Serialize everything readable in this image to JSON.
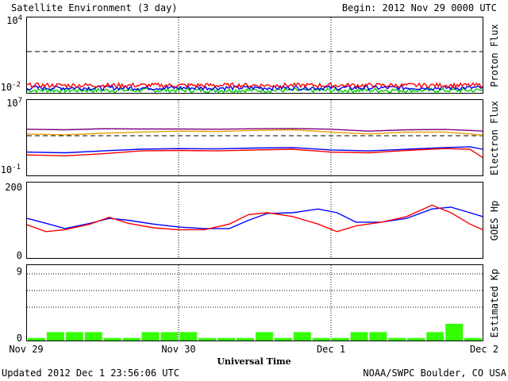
{
  "header": {
    "title": "Satellite Environment (3 day)",
    "begin": "Begin:  2012 Nov 29 0000 UTC"
  },
  "footer": {
    "updated": "Updated 2012 Dec  1 23:56:06 UTC",
    "credit": "NOAA/SWPC Boulder, CO USA"
  },
  "xaxis": {
    "label": "Universal Time",
    "ticks": [
      "Nov 29",
      "Nov 30",
      "Dec 1",
      "Dec 2"
    ]
  },
  "panels": {
    "proton": {
      "ylabel": "Proton Flux",
      "ymax": "10",
      "ymax_exp": "4",
      "ymin": "10",
      "ymin_exp": "-2"
    },
    "electron": {
      "ylabel": "Electron Flux",
      "ymax": "10",
      "ymax_exp": "7",
      "ymin": "10",
      "ymin_exp": "-1"
    },
    "goes_hp": {
      "ylabel": "GOES Hp",
      "ymax": "200",
      "ymin": "0"
    },
    "kp": {
      "ylabel": "Estimated Kp",
      "ymax": "9",
      "ymin": "0"
    }
  },
  "chart_data": [
    {
      "type": "line",
      "panel": "proton",
      "y_scale": "log",
      "ylim": [
        0.01,
        10000
      ],
      "x_range_hours": [
        0,
        72
      ],
      "threshold_line": 10,
      "series": [
        {
          "color": "#ff0000",
          "level": 0.04
        },
        {
          "color": "#0000ff",
          "level": 0.025
        },
        {
          "color": "#00cc00",
          "level": 0.016
        }
      ]
    },
    {
      "type": "line",
      "panel": "electron",
      "y_scale": "log",
      "ylim": [
        0.1,
        10000000
      ],
      "threshold_line": 1000,
      "x_hours": [
        0,
        6,
        12,
        18,
        24,
        30,
        36,
        42,
        48,
        54,
        60,
        66,
        70,
        72
      ],
      "series": [
        {
          "color": "#800080",
          "values": [
            8000,
            7000,
            9000,
            8500,
            8500,
            8000,
            9000,
            9500,
            8000,
            5000,
            7000,
            7500,
            6000,
            5000
          ]
        },
        {
          "color": "#e6a000",
          "values": [
            2500,
            2000,
            3000,
            4000,
            5000,
            4500,
            6000,
            7000,
            4000,
            2500,
            4000,
            4000,
            2500,
            1800
          ]
        },
        {
          "color": "#0000ff",
          "values": [
            30,
            25,
            40,
            60,
            70,
            65,
            80,
            90,
            50,
            40,
            60,
            90,
            110,
            60
          ]
        },
        {
          "color": "#ff0000",
          "values": [
            15,
            12,
            20,
            40,
            45,
            40,
            50,
            60,
            30,
            25,
            45,
            70,
            60,
            8
          ]
        }
      ]
    },
    {
      "type": "line",
      "panel": "goes_hp",
      "ylim": [
        0,
        200
      ],
      "x_hours": [
        0,
        3,
        6,
        10,
        13,
        16,
        20,
        24,
        28,
        32,
        35,
        38,
        42,
        46,
        49,
        52,
        56,
        60,
        64,
        67,
        70,
        72
      ],
      "series": [
        {
          "color": "#0000ff",
          "values": [
            105,
            92,
            78,
            92,
            105,
            100,
            90,
            82,
            78,
            78,
            100,
            118,
            120,
            130,
            120,
            95,
            95,
            105,
            130,
            135,
            120,
            110
          ]
        },
        {
          "color": "#ff0000",
          "values": [
            88,
            70,
            75,
            90,
            108,
            92,
            80,
            75,
            75,
            90,
            115,
            120,
            110,
            90,
            70,
            85,
            95,
            110,
            140,
            120,
            90,
            75
          ]
        }
      ]
    },
    {
      "type": "bar",
      "panel": "kp",
      "ylim": [
        0,
        9
      ],
      "interval_hours": 3,
      "color": "#33ff00",
      "values": [
        0.3,
        1,
        1,
        1,
        0.3,
        0.3,
        1,
        1,
        1,
        0.3,
        0.3,
        0.3,
        1,
        0.3,
        1,
        0.3,
        0.3,
        1,
        1,
        0.3,
        0.3,
        1,
        2,
        0.3
      ]
    }
  ]
}
